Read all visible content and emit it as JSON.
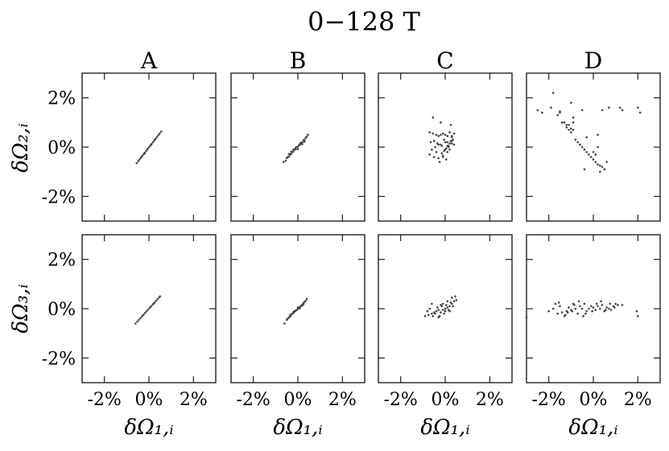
{
  "chart_data": {
    "type": "scatter",
    "title": "0−128 T",
    "columns": [
      "A",
      "B",
      "C",
      "D"
    ],
    "row_ylabels": [
      "δΩ₂,ᵢ",
      "δΩ₃,ᵢ"
    ],
    "xlabel": "δΩ₁,ᵢ",
    "xlim": [
      -3,
      3
    ],
    "ylim": [
      -3,
      3
    ],
    "xticks": [
      -2,
      0,
      2
    ],
    "yticks": [
      -2,
      0,
      2
    ],
    "xtick_labels": [
      "-2%",
      "0%",
      "2%"
    ],
    "ytick_labels": [
      "2%",
      "0%",
      "-2%"
    ],
    "grid": false,
    "panels": [
      {
        "row": 0,
        "col": "A",
        "name": "A-row1",
        "x": [
          -0.55,
          -0.48,
          -0.42,
          -0.36,
          -0.3,
          -0.24,
          -0.18,
          -0.12,
          -0.06,
          0.0,
          0.06,
          0.12,
          0.18,
          0.24,
          0.3,
          0.36,
          0.42,
          0.48,
          0.55,
          -0.2,
          0.1,
          0.25,
          -0.35
        ],
        "y": [
          -0.65,
          -0.57,
          -0.5,
          -0.43,
          -0.36,
          -0.29,
          -0.22,
          -0.15,
          -0.08,
          -0.01,
          0.06,
          0.13,
          0.2,
          0.27,
          0.34,
          0.41,
          0.48,
          0.55,
          0.63,
          -0.26,
          0.1,
          0.28,
          -0.42
        ]
      },
      {
        "row": 0,
        "col": "B",
        "name": "B-row1",
        "x": [
          -0.65,
          -0.55,
          -0.5,
          -0.45,
          -0.4,
          -0.35,
          -0.3,
          -0.25,
          -0.2,
          -0.15,
          -0.1,
          -0.05,
          0.0,
          0.05,
          0.1,
          0.15,
          0.2,
          0.25,
          0.3,
          0.35,
          0.4,
          0.45,
          -0.3,
          -0.1,
          0.1,
          0.2,
          -0.4,
          0.0,
          0.3,
          -0.2
        ],
        "y": [
          -0.6,
          -0.55,
          -0.45,
          -0.4,
          -0.38,
          -0.3,
          -0.27,
          -0.2,
          -0.18,
          -0.1,
          -0.08,
          0.0,
          0.02,
          0.08,
          0.1,
          0.18,
          0.2,
          0.28,
          0.3,
          0.38,
          0.42,
          0.5,
          -0.18,
          -0.02,
          0.15,
          0.12,
          -0.28,
          -0.08,
          0.22,
          -0.1
        ]
      },
      {
        "row": 0,
        "col": "C",
        "name": "C-row1",
        "x": [
          -0.7,
          -0.55,
          -0.4,
          -0.3,
          -0.2,
          -0.1,
          0.0,
          0.1,
          0.2,
          0.3,
          0.4,
          -0.65,
          -0.5,
          -0.35,
          -0.2,
          -0.05,
          0.1,
          0.25,
          0.4,
          -0.6,
          -0.45,
          -0.3,
          -0.15,
          0.0,
          0.15,
          0.3,
          -0.7,
          -0.4,
          -0.1,
          0.2,
          0.35,
          -0.25,
          0.05,
          -0.5,
          0.3,
          -0.55,
          -0.2,
          0.25,
          -0.15,
          -0.05,
          0.05,
          0.15,
          -0.1,
          0.0,
          0.1,
          0.2,
          0.3,
          -0.3,
          0.1
        ],
        "y": [
          0.6,
          0.55,
          0.5,
          0.45,
          0.5,
          0.55,
          0.5,
          0.45,
          0.6,
          0.4,
          0.55,
          0.2,
          0.25,
          0.15,
          0.1,
          0.3,
          0.2,
          0.25,
          0.1,
          -0.1,
          0.0,
          0.1,
          0.05,
          0.2,
          0.0,
          0.15,
          -0.3,
          -0.2,
          -0.4,
          -0.1,
          0.3,
          -0.6,
          -0.5,
          -0.4,
          0.45,
          1.2,
          1.0,
          0.9,
          -0.25,
          -0.15,
          -0.05,
          0.05,
          -0.35,
          -0.1,
          0.05,
          0.15,
          0.25,
          -0.45,
          -0.2
        ]
      },
      {
        "row": 0,
        "col": "D",
        "name": "D-row1",
        "x": [
          -2.5,
          -2.3,
          -1.9,
          -1.6,
          -1.5,
          -1.3,
          -1.2,
          -1.1,
          -1.0,
          -0.9,
          -0.8,
          -0.7,
          -0.6,
          -0.5,
          -0.4,
          -0.3,
          -0.2,
          -0.1,
          0.0,
          0.1,
          0.2,
          0.3,
          0.4,
          0.5,
          0.6,
          -1.8,
          -1.4,
          -1.0,
          -0.5,
          0.0,
          0.3,
          -0.9,
          -1.2,
          -0.3,
          0.2,
          1.2,
          1.3,
          2.0,
          2.1,
          0.4,
          0.7,
          -1.5,
          -1.0,
          -1.1,
          -0.9,
          -0.4,
          0.1,
          -0.6,
          0.2
        ],
        "y": [
          1.5,
          1.4,
          1.6,
          1.3,
          1.4,
          1.0,
          0.8,
          0.7,
          0.75,
          0.7,
          0.3,
          0.2,
          0.1,
          0.0,
          -0.1,
          -0.2,
          -0.3,
          -0.4,
          -0.5,
          -0.6,
          -0.7,
          -0.75,
          -0.8,
          -0.9,
          -0.6,
          2.2,
          1.0,
          1.8,
          1.5,
          -0.2,
          -1.0,
          1.2,
          0.9,
          0.4,
          0.0,
          1.6,
          1.5,
          1.6,
          1.4,
          1.5,
          1.6,
          1.45,
          0.6,
          0.9,
          1.0,
          -0.9,
          -0.3,
          0.1,
          0.5
        ]
      },
      {
        "row": 1,
        "col": "A",
        "name": "A-row2",
        "x": [
          -0.6,
          -0.52,
          -0.45,
          -0.38,
          -0.31,
          -0.24,
          -0.17,
          -0.1,
          -0.03,
          0.04,
          0.11,
          0.18,
          0.25,
          0.32,
          0.39,
          0.46,
          0.5,
          -0.3,
          0.05,
          0.2
        ],
        "y": [
          -0.6,
          -0.52,
          -0.45,
          -0.38,
          -0.31,
          -0.24,
          -0.17,
          -0.1,
          -0.03,
          0.04,
          0.11,
          0.18,
          0.25,
          0.32,
          0.39,
          0.46,
          0.5,
          -0.3,
          0.05,
          0.2
        ]
      },
      {
        "row": 1,
        "col": "B",
        "name": "B-row2",
        "x": [
          -0.6,
          -0.5,
          -0.45,
          -0.4,
          -0.35,
          -0.3,
          -0.25,
          -0.2,
          -0.15,
          -0.1,
          -0.05,
          0.0,
          0.05,
          0.1,
          0.15,
          0.2,
          0.25,
          0.3,
          0.35,
          0.4,
          -0.35,
          -0.2,
          0.0,
          0.1,
          0.25,
          -0.15,
          0.05,
          0.2
        ],
        "y": [
          -0.6,
          -0.45,
          -0.4,
          -0.35,
          -0.32,
          -0.25,
          -0.2,
          -0.18,
          -0.12,
          -0.08,
          -0.05,
          0.0,
          0.03,
          0.08,
          0.12,
          0.16,
          0.22,
          0.28,
          0.32,
          0.4,
          -0.25,
          -0.14,
          0.05,
          0.05,
          0.18,
          -0.1,
          0.0,
          0.14
        ]
      },
      {
        "row": 1,
        "col": "C",
        "name": "C-row2",
        "x": [
          -0.9,
          -0.75,
          -0.6,
          -0.5,
          -0.4,
          -0.3,
          -0.2,
          -0.1,
          0.0,
          0.1,
          0.2,
          0.3,
          0.4,
          0.5,
          -0.8,
          -0.55,
          -0.35,
          -0.15,
          0.05,
          0.25,
          0.45,
          -0.7,
          -0.45,
          -0.25,
          -0.05,
          0.15,
          0.35,
          -0.6,
          -0.2,
          0.2,
          0.1,
          -0.1,
          0.0,
          0.3,
          -0.3
        ],
        "y": [
          -0.3,
          -0.25,
          -0.2,
          -0.15,
          -0.1,
          -0.05,
          -0.15,
          -0.05,
          0.0,
          0.05,
          0.1,
          0.2,
          0.3,
          0.35,
          -0.1,
          -0.3,
          0.05,
          0.1,
          0.15,
          0.25,
          0.5,
          0.0,
          -0.2,
          -0.3,
          -0.2,
          -0.05,
          0.1,
          0.2,
          0.15,
          -0.1,
          0.3,
          0.2,
          -0.1,
          0.45,
          -0.35
        ]
      },
      {
        "row": 1,
        "col": "D",
        "name": "D-row2",
        "x": [
          -2.0,
          -1.8,
          -1.6,
          -1.5,
          -1.4,
          -1.3,
          -1.2,
          -1.1,
          -1.0,
          -0.9,
          -0.8,
          -0.7,
          -0.6,
          -0.5,
          -0.4,
          -0.3,
          -0.2,
          -0.1,
          0.0,
          0.1,
          0.2,
          0.3,
          0.4,
          0.5,
          0.6,
          0.7,
          0.8,
          0.9,
          1.0,
          1.1,
          -1.7,
          -1.25,
          -0.95,
          -0.65,
          -0.35,
          0.15,
          0.55,
          0.95,
          1.3,
          1.95,
          2.0,
          -3.0,
          -1.55,
          -0.85,
          -0.45,
          0.35,
          0.75,
          -1.15,
          -0.05
        ],
        "y": [
          -0.1,
          0.0,
          -0.2,
          0.1,
          -0.15,
          -0.3,
          -0.1,
          0.05,
          -0.05,
          0.2,
          0.0,
          -0.2,
          0.1,
          0.0,
          0.2,
          -0.1,
          0.0,
          0.1,
          0.05,
          -0.05,
          0.1,
          0.0,
          0.15,
          -0.1,
          0.05,
          0.0,
          -0.05,
          0.1,
          0.2,
          0.15,
          0.2,
          -0.25,
          -0.1,
          0.3,
          -0.2,
          0.2,
          -0.05,
          0.05,
          0.15,
          -0.1,
          -0.3,
          -0.35,
          0.25,
          0.15,
          -0.3,
          0.3,
          0.2,
          -0.15,
          -0.1
        ]
      }
    ]
  }
}
